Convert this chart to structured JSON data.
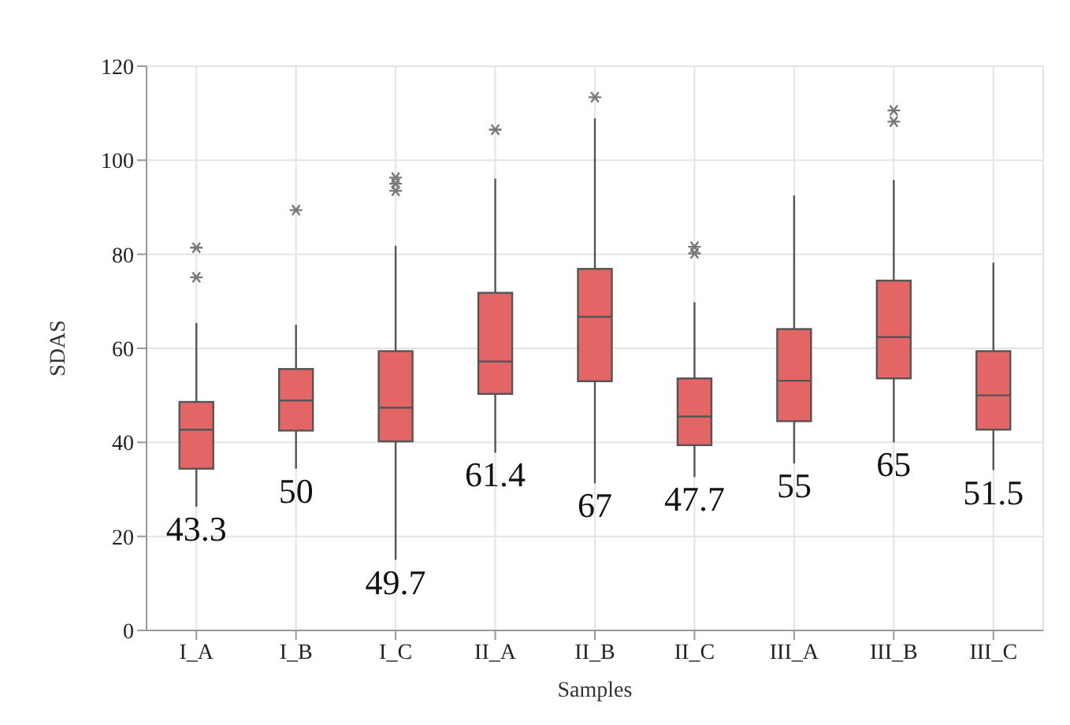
{
  "chart_data": {
    "type": "box",
    "xlabel": "Samples",
    "ylabel": "SDAS",
    "categories": [
      "I_A",
      "I_B",
      "I_C",
      "II_A",
      "II_B",
      "II_C",
      "III_A",
      "III_B",
      "III_C"
    ],
    "color": "#e46566",
    "boxes": [
      {
        "low": 26.3,
        "q1": 34.4,
        "median": 42.7,
        "q3": 48.6,
        "high": 65.4,
        "outliers": [
          75.1,
          81.4
        ]
      },
      {
        "low": 34.4,
        "q1": 42.5,
        "median": 48.9,
        "q3": 55.6,
        "high": 65,
        "outliers": [
          89.4
        ]
      },
      {
        "low": 15,
        "q1": 40.2,
        "median": 47.4,
        "q3": 59.4,
        "high": 81.8,
        "outliers": [
          93.5,
          95,
          96.3
        ]
      },
      {
        "low": 37.8,
        "q1": 50.3,
        "median": 57.2,
        "q3": 71.8,
        "high": 96.1,
        "outliers": [
          106.5
        ]
      },
      {
        "low": 31.3,
        "q1": 53,
        "median": 66.7,
        "q3": 76.9,
        "high": 108.9,
        "outliers": [
          113.4
        ]
      },
      {
        "low": 32.6,
        "q1": 39.4,
        "median": 45.5,
        "q3": 53.6,
        "high": 69.8,
        "outliers": [
          80.2,
          81.6
        ]
      },
      {
        "low": 35.5,
        "q1": 44.5,
        "median": 53.1,
        "q3": 64.1,
        "high": 92.5
      },
      {
        "low": 40,
        "q1": 53.6,
        "median": 62.4,
        "q3": 74.4,
        "high": 95.8,
        "outliers": [
          108.2,
          110.6
        ]
      },
      {
        "low": 34.1,
        "q1": 42.7,
        "median": 50,
        "q3": 59.4,
        "high": 78.2
      }
    ],
    "ylim": [
      0,
      120
    ],
    "yticks": [
      0,
      20,
      40,
      60,
      80,
      100,
      120
    ],
    "grid": true,
    "marker": "cross",
    "annotations": [
      "43.3",
      "50",
      "49.7",
      "61.4",
      "67",
      "47.7",
      "55",
      "65",
      "51.5"
    ]
  }
}
